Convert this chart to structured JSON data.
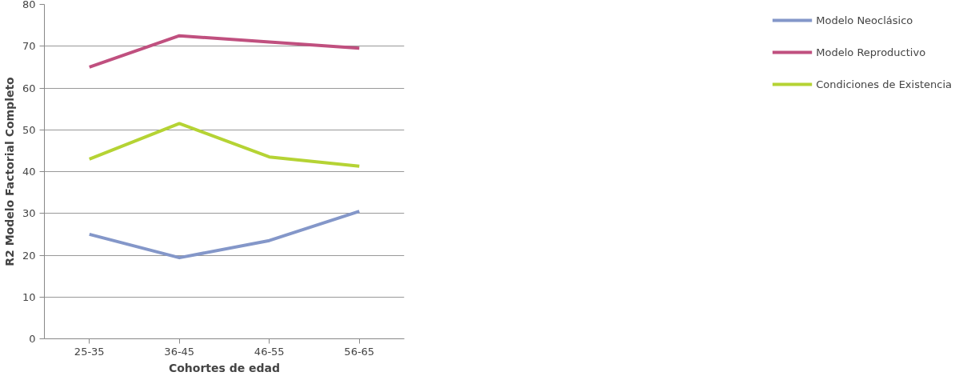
{
  "chart_data": {
    "type": "line",
    "xlabel": "Cohortes de edad",
    "ylabel": "R2 Modelo Factorial Completo",
    "categories": [
      "25-35",
      "36-45",
      "46-55",
      "56-65"
    ],
    "series": [
      {
        "name": "Modelo Neoclásico",
        "color": "#8497c9",
        "values": [
          25,
          19.4,
          23.5,
          30.5
        ]
      },
      {
        "name": "Modelo Reproductivo",
        "color": "#c0507f",
        "values": [
          65,
          72.5,
          71,
          69.5
        ]
      },
      {
        "name": "Condiciones de Existencia",
        "color": "#b5d334",
        "values": [
          43,
          51.5,
          43.5,
          41.3
        ]
      }
    ],
    "ylim": [
      0,
      80
    ],
    "yticks": [
      0,
      10,
      20,
      30,
      40,
      50,
      60,
      70,
      80
    ],
    "grid": "y",
    "legend": "right",
    "marker": "none",
    "line_style": "solid"
  }
}
